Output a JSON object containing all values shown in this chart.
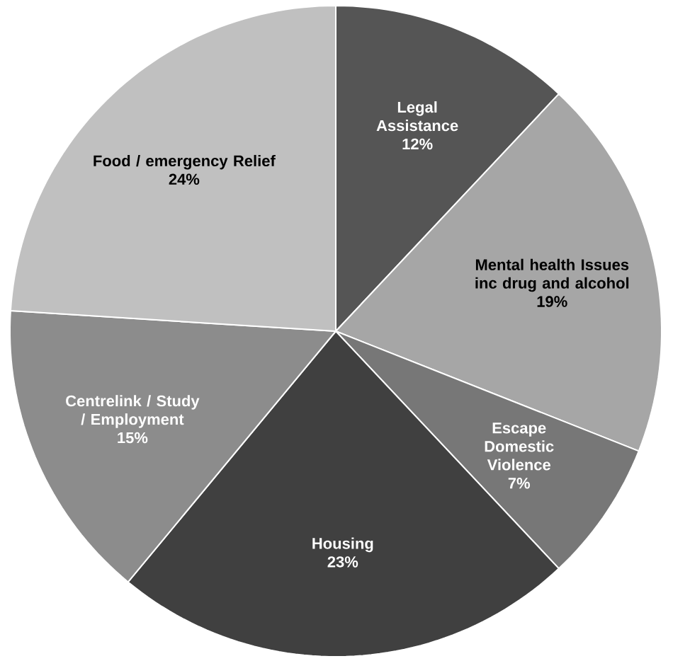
{
  "chart_data": {
    "type": "pie",
    "categories": [
      "Legal Assistance",
      "Mental health Issues inc drug and alcohol",
      "Escape Domestic Violence",
      "Housing",
      "Centrelink / Study / Employment",
      "Food / emergency Relief"
    ],
    "values": [
      12,
      19,
      7,
      23,
      15,
      24
    ],
    "value_labels": [
      "12%",
      "19%",
      "7%",
      "23%",
      "15%",
      "24%"
    ],
    "colors": [
      "#555555",
      "#a6a6a6",
      "#777777",
      "#404040",
      "#8c8c8c",
      "#c0c0c0"
    ]
  }
}
